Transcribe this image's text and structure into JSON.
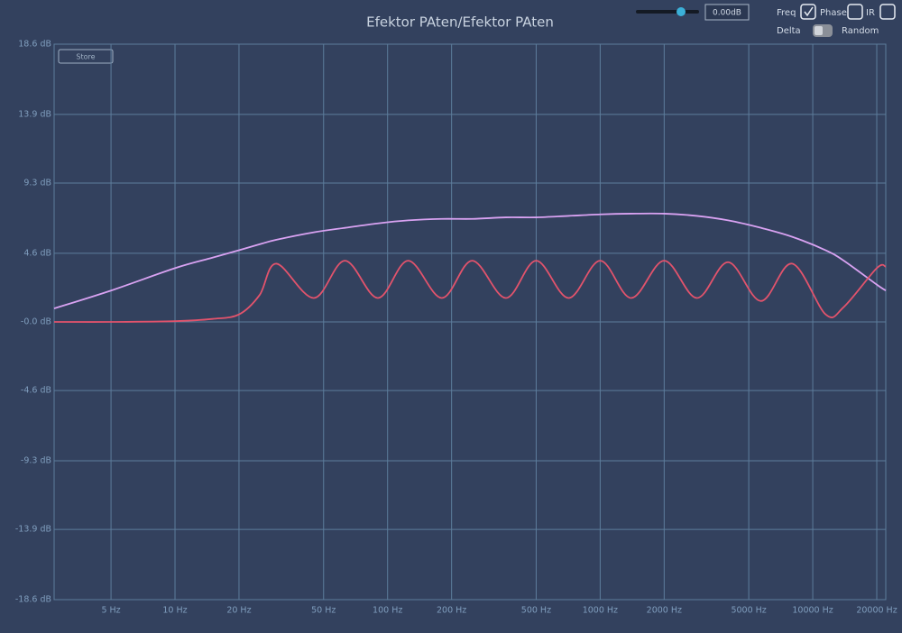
{
  "chart_data": {
    "type": "line",
    "title": "Efektor PAten/Efektor PAten",
    "log_x": true,
    "grid": true,
    "xlim": [
      2.7,
      22050
    ],
    "xticks": [
      {
        "value": 5,
        "label": "5 Hz"
      },
      {
        "value": 10,
        "label": "10 Hz"
      },
      {
        "value": 20,
        "label": "20 Hz"
      },
      {
        "value": 50,
        "label": "50 Hz"
      },
      {
        "value": 100,
        "label": "100 Hz"
      },
      {
        "value": 200,
        "label": "200 Hz"
      },
      {
        "value": 500,
        "label": "500 Hz"
      },
      {
        "value": 1000,
        "label": "1000 Hz"
      },
      {
        "value": 2000,
        "label": "2000 Hz"
      },
      {
        "value": 5000,
        "label": "5000 Hz"
      },
      {
        "value": 10000,
        "label": "10000 Hz"
      },
      {
        "value": 20000,
        "label": "20000 Hz"
      }
    ],
    "ylim": [
      -18.6,
      18.6
    ],
    "yticks": [
      {
        "value": 18.6,
        "label": "18.6 dB"
      },
      {
        "value": 13.9,
        "label": "13.9 dB"
      },
      {
        "value": 9.3,
        "label": "9.3 dB"
      },
      {
        "value": 4.6,
        "label": "4.6 dB"
      },
      {
        "value": 0,
        "label": "-0.0 dB"
      },
      {
        "value": -4.6,
        "label": "-4.6 dB"
      },
      {
        "value": -9.3,
        "label": "-9.3 dB"
      },
      {
        "value": -13.9,
        "label": "-13.9 dB"
      },
      {
        "value": -18.6,
        "label": "-18.6 dB"
      }
    ],
    "x": [
      2.7,
      5,
      10,
      15,
      20,
      25,
      30,
      45,
      63,
      90,
      125,
      180,
      250,
      360,
      500,
      710,
      1000,
      1400,
      2000,
      2850,
      4000,
      5700,
      8000,
      11500,
      14000,
      20000,
      22050
    ],
    "series": [
      {
        "color": "#d9a2f2",
        "values": [
          0.9,
          2.1,
          3.6,
          4.3,
          4.8,
          5.2,
          5.5,
          6.0,
          6.3,
          6.6,
          6.8,
          6.9,
          6.9,
          7.0,
          7.0,
          7.1,
          7.2,
          7.25,
          7.25,
          7.1,
          6.8,
          6.3,
          5.7,
          4.8,
          4.1,
          2.5,
          2.1
        ]
      },
      {
        "color": "#e2536c",
        "values": [
          0,
          0,
          0.05,
          0.2,
          0.5,
          1.8,
          3.9,
          1.6,
          4.1,
          1.6,
          4.1,
          1.6,
          4.1,
          1.6,
          4.1,
          1.6,
          4.1,
          1.6,
          4.1,
          1.6,
          4.0,
          1.4,
          3.9,
          0.5,
          1.0,
          3.6,
          3.7
        ]
      }
    ]
  },
  "controls": {
    "store": "Store",
    "gain": "0.00dB",
    "checkboxes": [
      {
        "label": "Freq",
        "checked": true
      },
      {
        "label": "Phase",
        "checked": false
      },
      {
        "label": "IR",
        "checked": false
      }
    ],
    "delta": "Delta",
    "random": "Random"
  }
}
